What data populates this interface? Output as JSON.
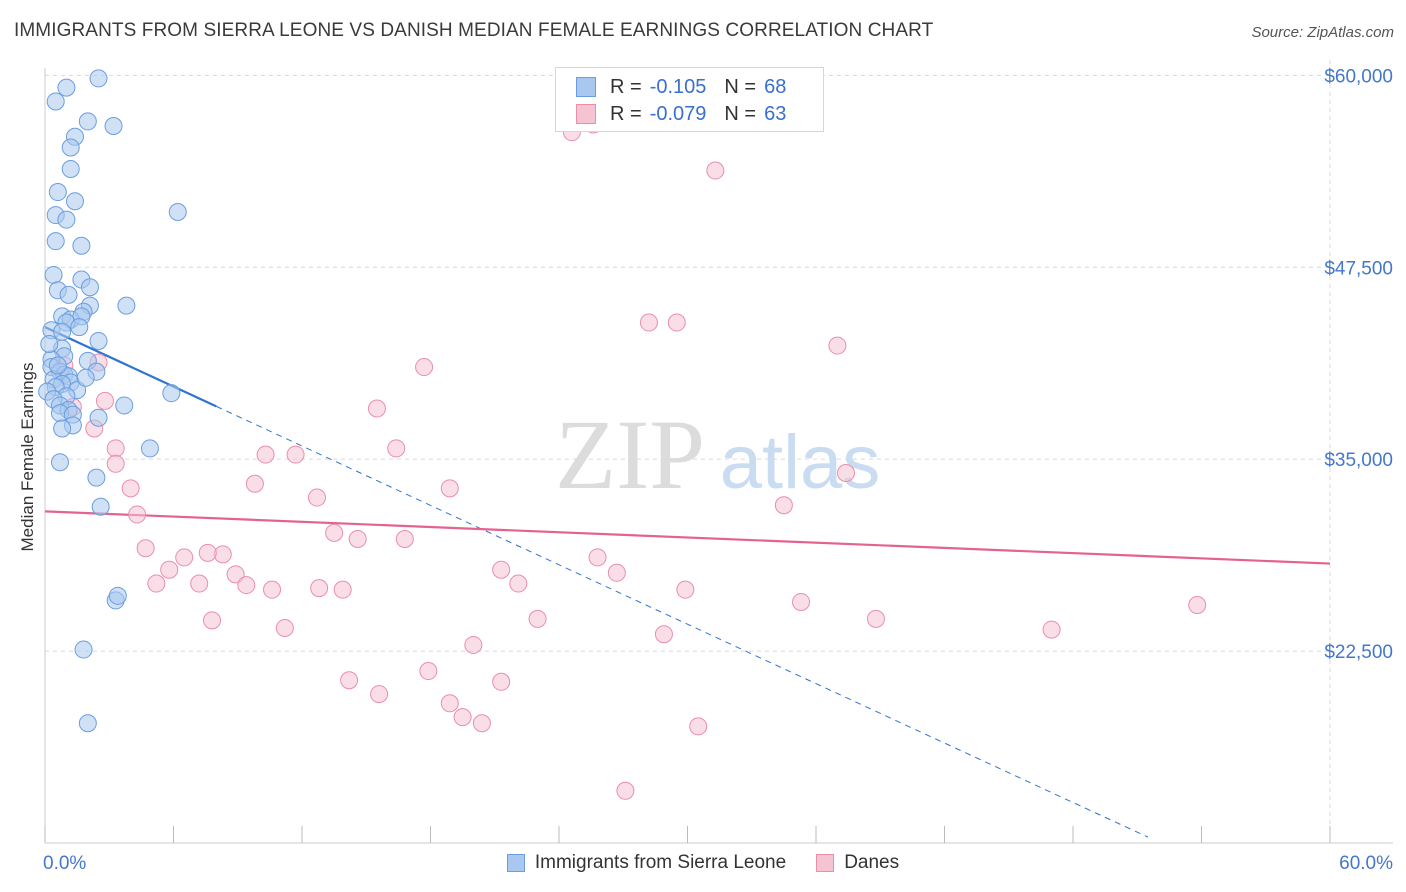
{
  "title": "IMMIGRANTS FROM SIERRA LEONE VS DANISH MEDIAN FEMALE EARNINGS CORRELATION CHART",
  "source": "Source: ZipAtlas.com",
  "watermark": {
    "zip": "ZIP",
    "atlas": "atlas"
  },
  "colors": {
    "blue_fill": "#a9c8ef",
    "blue_stroke": "#6a9ee0",
    "blue_line": "#2f74d0",
    "pink_fill": "#f6c3d3",
    "pink_stroke": "#ea8eab",
    "pink_line": "#e4628f",
    "axis_text": "#4477cc",
    "grid": "#d9d9d9"
  },
  "stats": {
    "blue": {
      "r_label": "R =",
      "r": "-0.105",
      "n_label": "N =",
      "n": "68"
    },
    "pink": {
      "r_label": "R =",
      "r": "-0.079",
      "n_label": "N =",
      "n": "63"
    }
  },
  "legend": {
    "blue": "Immigrants from Sierra Leone",
    "pink": "Danes"
  },
  "chart_data": {
    "type": "scatter",
    "title": "IMMIGRANTS FROM SIERRA LEONE VS DANISH MEDIAN FEMALE EARNINGS CORRELATION CHART",
    "xlabel": "",
    "ylabel": "Median Female Earnings",
    "xlim": [
      0,
      60
    ],
    "ylim": [
      10000,
      61000
    ],
    "x_tick_labels": [
      "0.0%",
      "60.0%"
    ],
    "y_ticks": [
      22500,
      35000,
      47500,
      60000
    ],
    "y_tick_labels": [
      "$22,500",
      "$35,000",
      "$47,500",
      "$60,000"
    ],
    "grid": true,
    "legend_position": "bottom",
    "series": [
      {
        "name": "Immigrants from Sierra Leone",
        "color": "blue",
        "points": [
          [
            1.0,
            59200
          ],
          [
            2.5,
            59800
          ],
          [
            0.5,
            58300
          ],
          [
            2.0,
            57000
          ],
          [
            3.2,
            56700
          ],
          [
            1.4,
            56000
          ],
          [
            1.2,
            55300
          ],
          [
            1.2,
            53900
          ],
          [
            0.6,
            52400
          ],
          [
            1.4,
            51800
          ],
          [
            0.5,
            50900
          ],
          [
            6.2,
            51100
          ],
          [
            1.0,
            50600
          ],
          [
            0.5,
            49200
          ],
          [
            1.7,
            48900
          ],
          [
            0.4,
            47000
          ],
          [
            1.7,
            46700
          ],
          [
            2.1,
            46200
          ],
          [
            0.6,
            46000
          ],
          [
            1.1,
            45700
          ],
          [
            2.1,
            45000
          ],
          [
            3.8,
            45000
          ],
          [
            1.8,
            44600
          ],
          [
            0.8,
            44300
          ],
          [
            1.2,
            44100
          ],
          [
            1.7,
            44300
          ],
          [
            1.0,
            43900
          ],
          [
            0.3,
            43400
          ],
          [
            0.8,
            43300
          ],
          [
            2.5,
            42700
          ],
          [
            0.8,
            42200
          ],
          [
            0.9,
            41700
          ],
          [
            0.3,
            41500
          ],
          [
            2.0,
            41400
          ],
          [
            0.3,
            41000
          ],
          [
            0.7,
            40700
          ],
          [
            2.4,
            40700
          ],
          [
            0.9,
            40500
          ],
          [
            1.1,
            40400
          ],
          [
            0.4,
            40200
          ],
          [
            1.2,
            40000
          ],
          [
            0.8,
            39900
          ],
          [
            0.5,
            39700
          ],
          [
            1.5,
            39500
          ],
          [
            0.1,
            39400
          ],
          [
            5.9,
            39300
          ],
          [
            1.0,
            39100
          ],
          [
            0.4,
            38900
          ],
          [
            0.7,
            38500
          ],
          [
            3.7,
            38500
          ],
          [
            1.1,
            38200
          ],
          [
            0.7,
            38000
          ],
          [
            1.3,
            37900
          ],
          [
            2.5,
            37700
          ],
          [
            1.3,
            37200
          ],
          [
            0.8,
            37000
          ],
          [
            4.9,
            35700
          ],
          [
            0.7,
            34800
          ],
          [
            2.4,
            33800
          ],
          [
            2.6,
            31900
          ],
          [
            3.3,
            25800
          ],
          [
            3.4,
            26100
          ],
          [
            1.8,
            22600
          ],
          [
            2.0,
            17800
          ],
          [
            0.2,
            42500
          ],
          [
            1.6,
            43600
          ],
          [
            0.6,
            41100
          ],
          [
            1.9,
            40300
          ]
        ]
      },
      {
        "name": "Danes",
        "color": "pink",
        "points": [
          [
            24.6,
            56300
          ],
          [
            25.6,
            56800
          ],
          [
            31.3,
            53800
          ],
          [
            28.2,
            43900
          ],
          [
            29.5,
            43900
          ],
          [
            37.0,
            42400
          ],
          [
            17.7,
            41000
          ],
          [
            0.9,
            41100
          ],
          [
            2.8,
            38800
          ],
          [
            1.3,
            38400
          ],
          [
            15.5,
            38300
          ],
          [
            2.3,
            37000
          ],
          [
            16.4,
            35700
          ],
          [
            3.3,
            35700
          ],
          [
            3.3,
            34700
          ],
          [
            37.4,
            34100
          ],
          [
            10.3,
            35300
          ],
          [
            11.7,
            35300
          ],
          [
            9.8,
            33400
          ],
          [
            4.0,
            33100
          ],
          [
            18.9,
            33100
          ],
          [
            12.7,
            32500
          ],
          [
            34.5,
            32000
          ],
          [
            4.3,
            31400
          ],
          [
            13.5,
            30200
          ],
          [
            14.6,
            29800
          ],
          [
            16.8,
            29800
          ],
          [
            4.7,
            29200
          ],
          [
            6.5,
            28600
          ],
          [
            8.3,
            28800
          ],
          [
            7.6,
            28900
          ],
          [
            25.8,
            28600
          ],
          [
            5.8,
            27800
          ],
          [
            21.3,
            27800
          ],
          [
            26.7,
            27600
          ],
          [
            8.9,
            27500
          ],
          [
            5.2,
            26900
          ],
          [
            7.2,
            26900
          ],
          [
            9.4,
            26800
          ],
          [
            22.1,
            26900
          ],
          [
            10.6,
            26500
          ],
          [
            12.8,
            26600
          ],
          [
            13.9,
            26500
          ],
          [
            29.9,
            26500
          ],
          [
            35.3,
            25700
          ],
          [
            53.8,
            25500
          ],
          [
            7.8,
            24500
          ],
          [
            23.0,
            24600
          ],
          [
            38.8,
            24600
          ],
          [
            11.2,
            24000
          ],
          [
            28.9,
            23600
          ],
          [
            47.0,
            23900
          ],
          [
            20.0,
            22900
          ],
          [
            14.2,
            20600
          ],
          [
            17.9,
            21200
          ],
          [
            15.6,
            19700
          ],
          [
            21.3,
            20500
          ],
          [
            18.9,
            19100
          ],
          [
            19.5,
            18200
          ],
          [
            20.4,
            17800
          ],
          [
            30.5,
            17600
          ],
          [
            27.1,
            13400
          ],
          [
            2.5,
            41300
          ]
        ]
      }
    ],
    "trend_lines": [
      {
        "series": "Immigrants from Sierra Leone",
        "solid_x": [
          0,
          8.0
        ],
        "dashed_x": [
          8.0,
          51.5
        ],
        "y_at_0": 43600,
        "slope_per_pct": -645
      },
      {
        "series": "Danes",
        "solid_x": [
          0,
          60
        ],
        "y_at_0": 31600,
        "y_at_60": 28200
      }
    ]
  }
}
